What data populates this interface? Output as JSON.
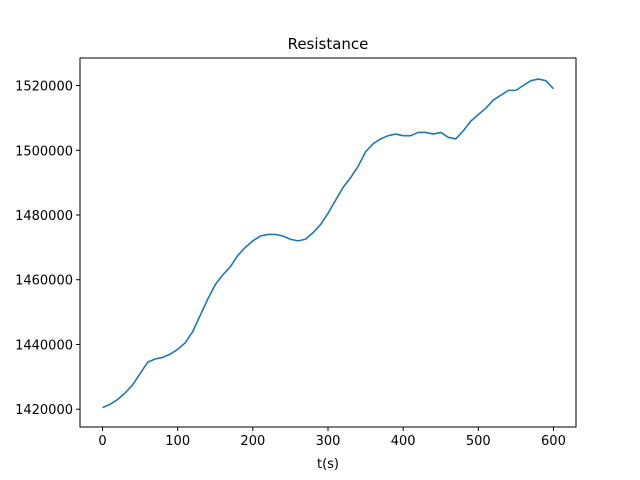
{
  "chart_data": {
    "type": "line",
    "title": "Resistance",
    "xlabel": "t(s)",
    "ylabel": "",
    "xlim": [
      -30,
      630
    ],
    "ylim": [
      1414500,
      1528500
    ],
    "xticks": [
      0,
      100,
      200,
      300,
      400,
      500,
      600
    ],
    "xtick_labels": [
      "0",
      "100",
      "200",
      "300",
      "400",
      "500",
      "600"
    ],
    "yticks": [
      1420000,
      1440000,
      1460000,
      1480000,
      1500000,
      1520000
    ],
    "ytick_labels": [
      "1420000",
      "1440000",
      "1460000",
      "1480000",
      "1500000",
      "1520000"
    ],
    "grid": false,
    "series": [
      {
        "color": "#1f77b4",
        "x": [
          0,
          10,
          20,
          30,
          40,
          50,
          60,
          70,
          80,
          90,
          100,
          110,
          120,
          130,
          140,
          150,
          160,
          170,
          180,
          190,
          200,
          210,
          220,
          230,
          240,
          250,
          260,
          270,
          280,
          290,
          300,
          310,
          320,
          330,
          340,
          350,
          360,
          370,
          380,
          390,
          400,
          410,
          420,
          430,
          440,
          450,
          460,
          470,
          480,
          490,
          500,
          510,
          520,
          530,
          540,
          550,
          560,
          570,
          580,
          590,
          600
        ],
        "y": [
          1420500,
          1421500,
          1423000,
          1425000,
          1427500,
          1431000,
          1434500,
          1435500,
          1436000,
          1437000,
          1438500,
          1440500,
          1444000,
          1449000,
          1454000,
          1458500,
          1461500,
          1464000,
          1467500,
          1470000,
          1472000,
          1473500,
          1474000,
          1474000,
          1473500,
          1472500,
          1472000,
          1472500,
          1474500,
          1477000,
          1480500,
          1484500,
          1488500,
          1491500,
          1495000,
          1499500,
          1502000,
          1503500,
          1504500,
          1505000,
          1504500,
          1504500,
          1505500,
          1505500,
          1505000,
          1505500,
          1504000,
          1503500,
          1506000,
          1509000,
          1511000,
          1513000,
          1515500,
          1517000,
          1518500,
          1518500,
          1520000,
          1521500,
          1522000,
          1521500,
          1519000
        ]
      }
    ]
  }
}
